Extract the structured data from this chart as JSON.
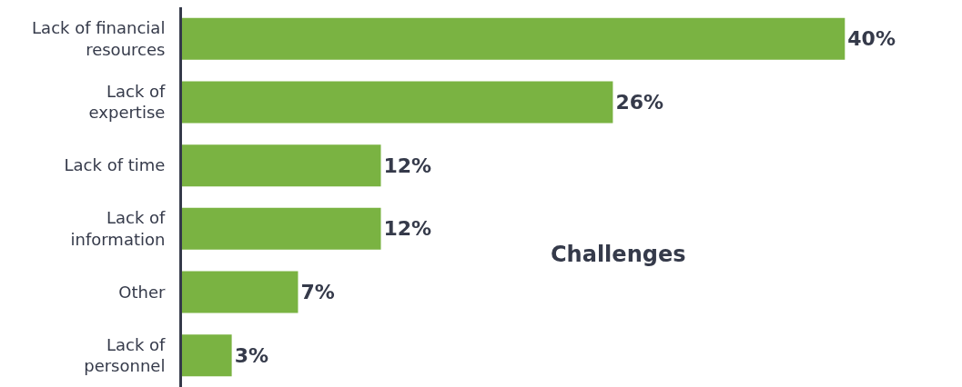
{
  "chart_data": {
    "type": "bar",
    "orientation": "horizontal",
    "categories": [
      "Lack of financial\nresources",
      "Lack of\nexpertise",
      "Lack of time",
      "Lack of\ninformation",
      "Other",
      "Lack of\npersonnel"
    ],
    "values": [
      40,
      26,
      12,
      12,
      7,
      3
    ],
    "value_labels": [
      "40%",
      "26%",
      "12%",
      "12%",
      "7%",
      "3%"
    ],
    "color": "#7ab342",
    "annotations": [
      "Challenges"
    ]
  }
}
